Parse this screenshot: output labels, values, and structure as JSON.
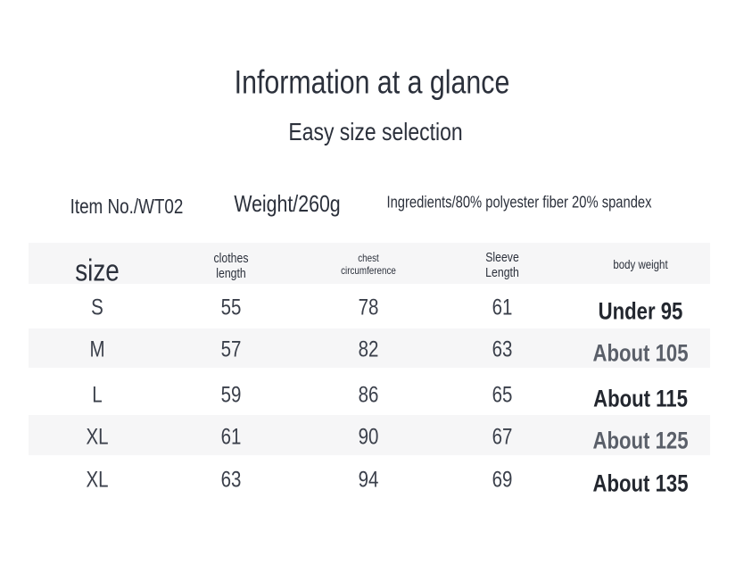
{
  "header": {
    "title": "Information at a glance",
    "subtitle": "Easy size selection"
  },
  "info": {
    "item": "Item No./WT02",
    "weight": "Weight/260g",
    "ingredients": "Ingredients/80% polyester fiber 20% spandex"
  },
  "table": {
    "columns": [
      "size",
      "clothes length",
      "chest circumference",
      "Sleeve Length",
      "body weight"
    ],
    "rows": [
      [
        "S",
        55,
        78,
        61,
        "Under 95"
      ],
      [
        "M",
        57,
        82,
        63,
        "About 105"
      ],
      [
        "L",
        59,
        86,
        65,
        "About 115"
      ],
      [
        "XL",
        61,
        90,
        67,
        "About 125"
      ],
      [
        "XL",
        63,
        94,
        69,
        "About 135"
      ]
    ]
  }
}
